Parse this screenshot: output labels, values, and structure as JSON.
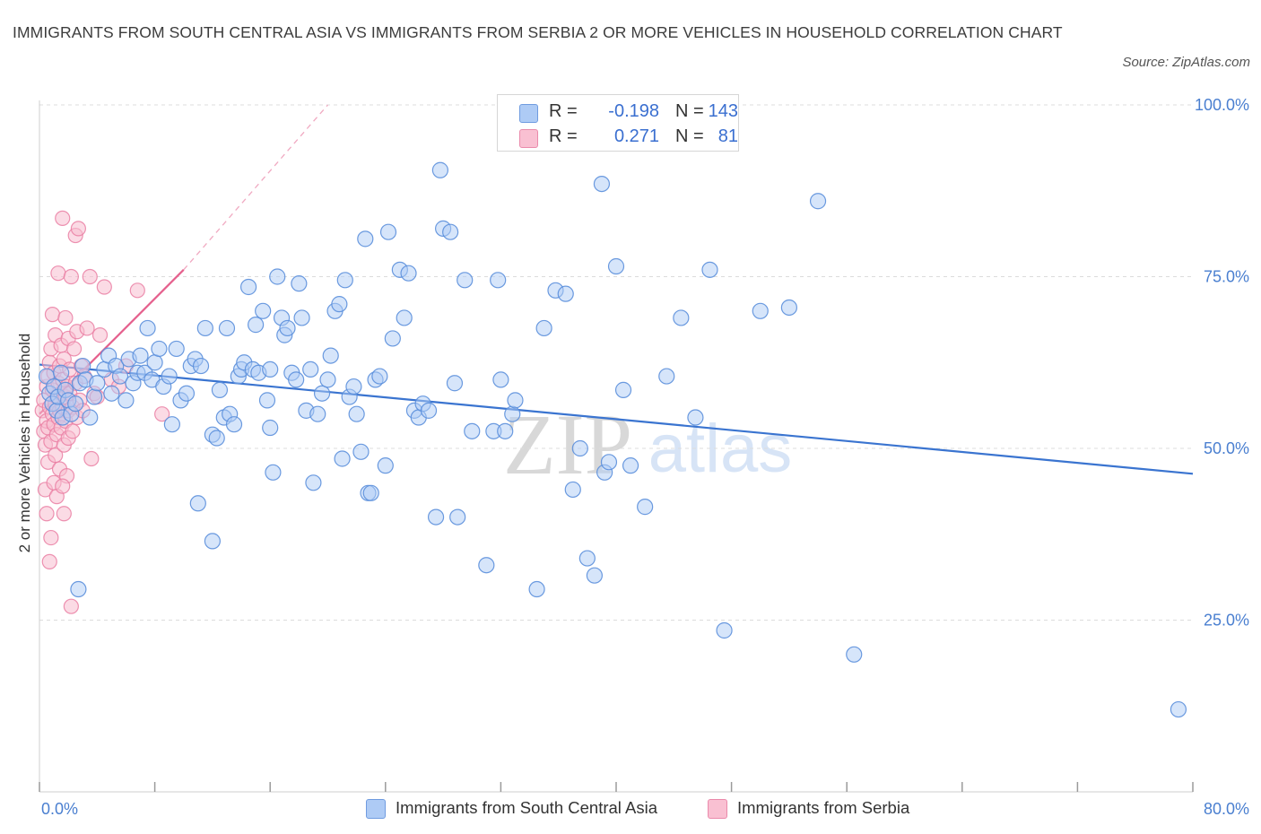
{
  "title": "IMMIGRANTS FROM SOUTH CENTRAL ASIA VS IMMIGRANTS FROM SERBIA 2 OR MORE VEHICLES IN HOUSEHOLD CORRELATION CHART",
  "source": "Source: ZipAtlas.com",
  "watermark": {
    "zip": "ZIP",
    "atlas": "atlas"
  },
  "legend": {
    "r_label": "R =",
    "n_label": "N =",
    "rows": [
      {
        "r": "-0.198",
        "n": "143",
        "color": "#aecbf5",
        "border": "#6f9be0"
      },
      {
        "r": "0.271",
        "n": "81",
        "color": "#f9c0d2",
        "border": "#ea8aab"
      }
    ]
  },
  "colors": {
    "blue_fill": "#aecbf5",
    "blue_stroke": "#5b8fdc",
    "blue_line": "#3a74d0",
    "pink_fill": "#f7bdd0",
    "pink_stroke": "#ea7fa3",
    "pink_line": "#e5608d",
    "grid": "#dcdcdc",
    "tick_text": "#4a7fd0"
  },
  "chart_data": {
    "type": "scatter",
    "title": "IMMIGRANTS FROM SOUTH CENTRAL ASIA VS IMMIGRANTS FROM SERBIA 2 OR MORE VEHICLES IN HOUSEHOLD CORRELATION CHART",
    "xlabel": "",
    "ylabel": "2 or more Vehicles in Household",
    "xlim": [
      0,
      80
    ],
    "ylim": [
      0,
      100
    ],
    "x_tick_labels": [
      "0.0%",
      "80.0%"
    ],
    "y_ticks": [
      25,
      50,
      75,
      100
    ],
    "y_tick_labels": [
      "25.0%",
      "50.0%",
      "75.0%",
      "100.0%"
    ],
    "grid": true,
    "legend_position": "top-center",
    "series": [
      {
        "name": "Immigrants from South Central Asia",
        "color": "#aecbf5",
        "trend": {
          "x": [
            0,
            80
          ],
          "y": [
            62.2,
            46.3
          ],
          "style": "solid"
        },
        "points": [
          [
            0.5,
            60.5
          ],
          [
            0.7,
            58.0
          ],
          [
            0.9,
            56.5
          ],
          [
            1.0,
            59.0
          ],
          [
            1.2,
            55.5
          ],
          [
            1.3,
            57.5
          ],
          [
            1.5,
            61.0
          ],
          [
            1.6,
            54.5
          ],
          [
            1.8,
            58.5
          ],
          [
            2.0,
            57.0
          ],
          [
            2.2,
            55.0
          ],
          [
            2.5,
            56.5
          ],
          [
            2.7,
            29.5
          ],
          [
            2.8,
            59.5
          ],
          [
            3.0,
            62.0
          ],
          [
            3.2,
            60.0
          ],
          [
            3.5,
            54.5
          ],
          [
            3.8,
            57.5
          ],
          [
            4.0,
            59.5
          ],
          [
            4.5,
            61.5
          ],
          [
            4.8,
            63.5
          ],
          [
            5.0,
            58.0
          ],
          [
            5.3,
            62.0
          ],
          [
            5.6,
            60.5
          ],
          [
            6.0,
            57.0
          ],
          [
            6.2,
            63.0
          ],
          [
            6.5,
            59.5
          ],
          [
            6.8,
            61.0
          ],
          [
            7.0,
            63.5
          ],
          [
            7.3,
            61.0
          ],
          [
            7.5,
            67.5
          ],
          [
            7.8,
            60.0
          ],
          [
            8.0,
            62.5
          ],
          [
            8.3,
            64.5
          ],
          [
            8.6,
            59.0
          ],
          [
            9.0,
            60.5
          ],
          [
            9.2,
            53.5
          ],
          [
            9.5,
            64.5
          ],
          [
            9.8,
            57.0
          ],
          [
            10.2,
            58.0
          ],
          [
            10.5,
            62.0
          ],
          [
            10.8,
            63.0
          ],
          [
            11.0,
            42.0
          ],
          [
            11.2,
            62.0
          ],
          [
            11.5,
            67.5
          ],
          [
            12.0,
            36.5
          ],
          [
            12.0,
            52.0
          ],
          [
            12.3,
            51.5
          ],
          [
            12.5,
            58.5
          ],
          [
            12.8,
            54.5
          ],
          [
            13.0,
            67.5
          ],
          [
            13.2,
            55.0
          ],
          [
            13.5,
            53.5
          ],
          [
            13.8,
            60.5
          ],
          [
            14.0,
            61.5
          ],
          [
            14.2,
            62.5
          ],
          [
            14.5,
            73.5
          ],
          [
            14.8,
            61.5
          ],
          [
            15.0,
            68.0
          ],
          [
            15.2,
            61.0
          ],
          [
            15.5,
            70.0
          ],
          [
            15.8,
            57.0
          ],
          [
            16.0,
            61.5
          ],
          [
            16.2,
            46.5
          ],
          [
            16.5,
            75.0
          ],
          [
            16.8,
            69.0
          ],
          [
            17.0,
            66.5
          ],
          [
            17.2,
            67.5
          ],
          [
            17.5,
            61.0
          ],
          [
            17.8,
            60.0
          ],
          [
            18.0,
            74.0
          ],
          [
            18.2,
            69.0
          ],
          [
            18.5,
            55.5
          ],
          [
            18.8,
            61.5
          ],
          [
            19.0,
            45.0
          ],
          [
            19.3,
            55.0
          ],
          [
            19.6,
            58.0
          ],
          [
            20.0,
            60.0
          ],
          [
            20.2,
            63.5
          ],
          [
            20.5,
            70.0
          ],
          [
            20.8,
            71.0
          ],
          [
            21.0,
            48.5
          ],
          [
            21.2,
            74.5
          ],
          [
            21.5,
            57.5
          ],
          [
            21.8,
            59.0
          ],
          [
            22.0,
            55.0
          ],
          [
            22.3,
            49.5
          ],
          [
            22.6,
            80.5
          ],
          [
            22.8,
            43.5
          ],
          [
            23.0,
            43.5
          ],
          [
            23.3,
            60.0
          ],
          [
            23.6,
            60.5
          ],
          [
            24.0,
            47.5
          ],
          [
            24.2,
            81.5
          ],
          [
            24.5,
            66.0
          ],
          [
            25.0,
            76.0
          ],
          [
            25.3,
            69.0
          ],
          [
            25.6,
            75.5
          ],
          [
            26.0,
            55.5
          ],
          [
            26.3,
            54.5
          ],
          [
            26.6,
            56.5
          ],
          [
            27.0,
            55.5
          ],
          [
            27.5,
            40.0
          ],
          [
            27.8,
            90.5
          ],
          [
            28.0,
            82.0
          ],
          [
            28.5,
            81.5
          ],
          [
            28.8,
            59.5
          ],
          [
            29.0,
            40.0
          ],
          [
            29.5,
            74.5
          ],
          [
            30.0,
            52.5
          ],
          [
            31.0,
            33.0
          ],
          [
            31.5,
            52.5
          ],
          [
            31.8,
            74.5
          ],
          [
            32.0,
            60.0
          ],
          [
            32.3,
            52.5
          ],
          [
            32.8,
            55.0
          ],
          [
            33.0,
            57.0
          ],
          [
            34.5,
            29.5
          ],
          [
            35.0,
            67.5
          ],
          [
            35.8,
            73.0
          ],
          [
            36.5,
            72.5
          ],
          [
            37.0,
            44.0
          ],
          [
            37.5,
            50.0
          ],
          [
            38.0,
            34.0
          ],
          [
            38.5,
            31.5
          ],
          [
            39.0,
            88.5
          ],
          [
            39.2,
            46.5
          ],
          [
            39.5,
            48.0
          ],
          [
            40.0,
            76.5
          ],
          [
            40.5,
            58.5
          ],
          [
            41.0,
            47.5
          ],
          [
            42.0,
            41.5
          ],
          [
            43.5,
            60.5
          ],
          [
            44.5,
            69.0
          ],
          [
            45.5,
            54.5
          ],
          [
            46.5,
            76.0
          ],
          [
            47.5,
            23.5
          ],
          [
            50.0,
            70.0
          ],
          [
            52.0,
            70.5
          ],
          [
            54.0,
            86.0
          ],
          [
            16.0,
            53.0
          ],
          [
            56.5,
            20.0
          ],
          [
            79.0,
            12.0
          ]
        ]
      },
      {
        "name": "Immigrants from Serbia",
        "color": "#f7bdd0",
        "trend": {
          "x": [
            0,
            10
          ],
          "y": [
            55.0,
            76.0
          ],
          "style": "solid",
          "dashed_extension_to": [
            20,
            100
          ]
        },
        "points": [
          [
            0.2,
            55.5
          ],
          [
            0.3,
            52.5
          ],
          [
            0.3,
            57.0
          ],
          [
            0.4,
            50.5
          ],
          [
            0.4,
            44.0
          ],
          [
            0.5,
            54.0
          ],
          [
            0.5,
            59.0
          ],
          [
            0.5,
            40.5
          ],
          [
            0.6,
            53.0
          ],
          [
            0.6,
            60.5
          ],
          [
            0.6,
            48.0
          ],
          [
            0.7,
            56.0
          ],
          [
            0.7,
            62.5
          ],
          [
            0.7,
            33.5
          ],
          [
            0.8,
            51.0
          ],
          [
            0.8,
            64.5
          ],
          [
            0.8,
            37.0
          ],
          [
            0.9,
            55.0
          ],
          [
            0.9,
            58.5
          ],
          [
            0.9,
            69.5
          ],
          [
            1.0,
            53.5
          ],
          [
            1.0,
            61.0
          ],
          [
            1.0,
            45.0
          ],
          [
            1.1,
            56.5
          ],
          [
            1.1,
            66.5
          ],
          [
            1.1,
            49.0
          ],
          [
            1.2,
            57.5
          ],
          [
            1.2,
            52.0
          ],
          [
            1.2,
            43.0
          ],
          [
            1.3,
            59.5
          ],
          [
            1.3,
            54.5
          ],
          [
            1.3,
            75.5
          ],
          [
            1.4,
            55.5
          ],
          [
            1.4,
            62.0
          ],
          [
            1.4,
            47.0
          ],
          [
            1.5,
            58.0
          ],
          [
            1.5,
            53.0
          ],
          [
            1.5,
            65.0
          ],
          [
            1.6,
            60.0
          ],
          [
            1.6,
            56.0
          ],
          [
            1.6,
            83.5
          ],
          [
            1.7,
            50.5
          ],
          [
            1.7,
            63.0
          ],
          [
            1.7,
            40.5
          ],
          [
            1.8,
            57.5
          ],
          [
            1.8,
            54.0
          ],
          [
            1.8,
            69.0
          ],
          [
            1.9,
            59.0
          ],
          [
            1.9,
            46.0
          ],
          [
            2.0,
            55.5
          ],
          [
            2.0,
            66.0
          ],
          [
            2.0,
            51.5
          ],
          [
            2.1,
            58.0
          ],
          [
            2.1,
            61.5
          ],
          [
            2.2,
            75.0
          ],
          [
            2.2,
            27.0
          ],
          [
            2.3,
            56.0
          ],
          [
            2.3,
            52.5
          ],
          [
            2.4,
            64.5
          ],
          [
            2.5,
            59.5
          ],
          [
            2.5,
            81.0
          ],
          [
            2.6,
            54.5
          ],
          [
            2.6,
            67.0
          ],
          [
            2.7,
            82.0
          ],
          [
            2.8,
            57.0
          ],
          [
            2.9,
            62.0
          ],
          [
            3.0,
            55.5
          ],
          [
            3.1,
            60.5
          ],
          [
            3.3,
            67.5
          ],
          [
            3.5,
            75.0
          ],
          [
            3.6,
            48.5
          ],
          [
            3.8,
            58.0
          ],
          [
            4.0,
            57.5
          ],
          [
            4.2,
            66.5
          ],
          [
            4.5,
            73.5
          ],
          [
            5.0,
            60.0
          ],
          [
            5.5,
            59.0
          ],
          [
            6.0,
            62.0
          ],
          [
            6.8,
            73.0
          ],
          [
            8.5,
            55.0
          ],
          [
            1.6,
            44.5
          ]
        ]
      }
    ]
  },
  "bottom_legend": [
    {
      "label": "Immigrants from South Central Asia",
      "color": "#aecbf5",
      "border": "#6f9be0"
    },
    {
      "label": "Immigrants from Serbia",
      "color": "#f9c0d2",
      "border": "#ea8aab"
    }
  ]
}
